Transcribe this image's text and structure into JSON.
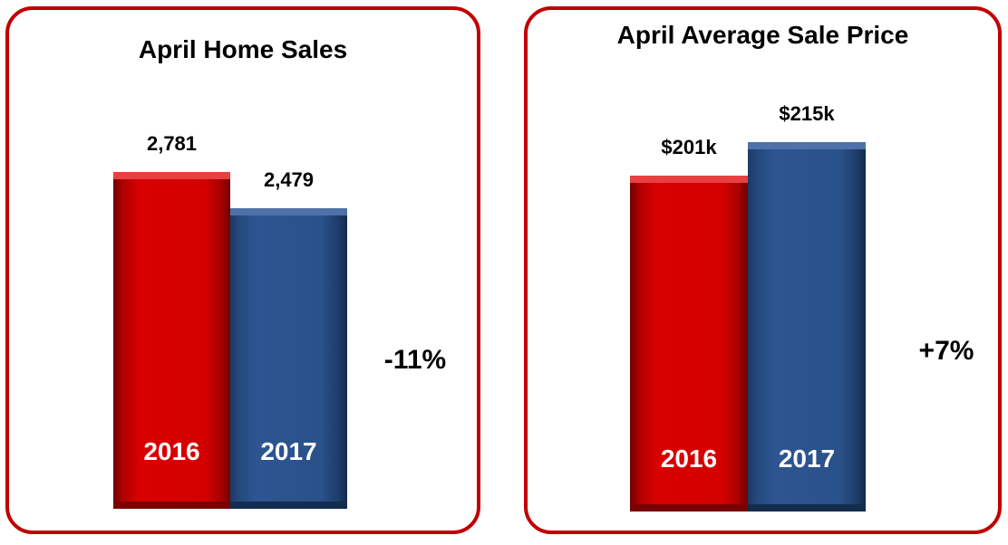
{
  "chart_data": [
    {
      "type": "bar",
      "title": "April Home Sales",
      "categories": [
        "2016",
        "2017"
      ],
      "values": [
        2781,
        2479
      ],
      "value_labels": [
        "2,781",
        "2,479"
      ],
      "change_label": "-11%",
      "colors": [
        "#c00000",
        "#2a5189"
      ]
    },
    {
      "type": "bar",
      "title": "April Average Sale Price",
      "categories": [
        "2016",
        "2017"
      ],
      "values": [
        201,
        215
      ],
      "value_labels": [
        "$201k",
        "$215k"
      ],
      "change_label": "+7%",
      "colors": [
        "#c00000",
        "#2a5189"
      ]
    }
  ],
  "colors": {
    "panel_border": "#c00000",
    "bar_2016": "#c00000",
    "bar_2017": "#2a5189"
  }
}
